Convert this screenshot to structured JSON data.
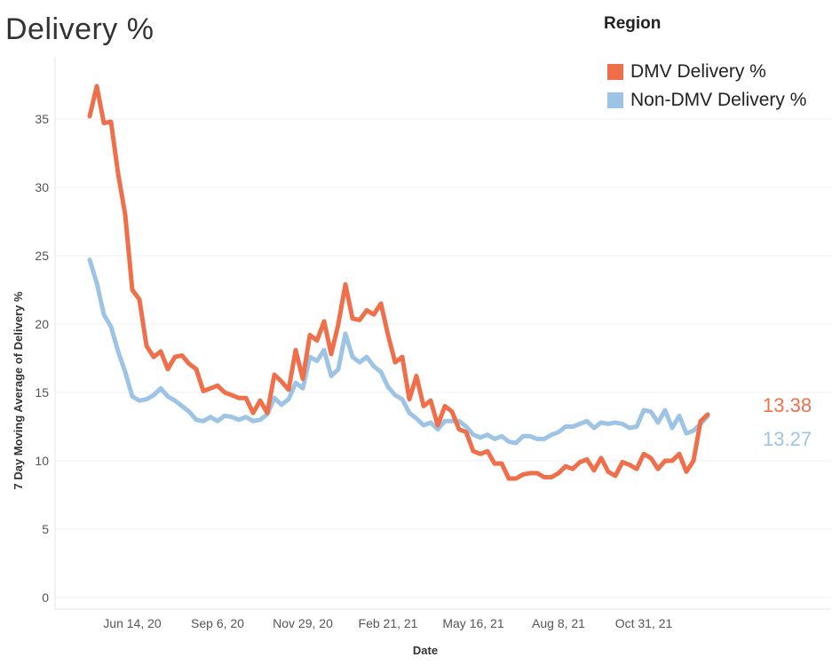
{
  "title": "Delivery %",
  "legend": {
    "title": "Region",
    "items": [
      {
        "label": "DMV Delivery %",
        "color": "#ef6f4a"
      },
      {
        "label": "Non-DMV Delivery %",
        "color": "#9dc4e4"
      }
    ]
  },
  "chart_data": {
    "type": "line",
    "title": "Delivery %",
    "xlabel": "Date",
    "ylabel": "7 Day Moving Average of Delivery %",
    "ylim": [
      0,
      38
    ],
    "yticks": [
      0,
      5,
      10,
      15,
      20,
      25,
      30,
      35
    ],
    "xticks": [
      {
        "label": "Jun 14, 20",
        "week": 6
      },
      {
        "label": "Sep 6, 20",
        "week": 18
      },
      {
        "label": "Nov 29, 20",
        "week": 30
      },
      {
        "label": "Feb 21, 21",
        "week": 42
      },
      {
        "label": "May 16, 21",
        "week": 54
      },
      {
        "label": "Aug 8, 21",
        "week": 66
      },
      {
        "label": "Oct 31, 21",
        "week": 78
      }
    ],
    "x_unit": "weeks since May 3, 20",
    "x_range": [
      -1.5,
      86
    ],
    "series": [
      {
        "name": "DMV Delivery %",
        "color": "#ef6f4a",
        "end_label": "13.38",
        "values": [
          35.2,
          37.4,
          34.7,
          34.8,
          31.0,
          28.0,
          22.5,
          21.8,
          18.4,
          17.6,
          18.0,
          16.7,
          17.6,
          17.7,
          17.1,
          16.7,
          15.1,
          15.3,
          15.5,
          15.0,
          14.8,
          14.6,
          14.6,
          13.5,
          14.4,
          13.5,
          16.3,
          15.8,
          15.2,
          18.1,
          16.0,
          19.2,
          18.8,
          20.2,
          17.8,
          20.0,
          22.9,
          20.4,
          20.3,
          21.0,
          20.7,
          21.5,
          19.2,
          17.2,
          17.6,
          14.5,
          16.2,
          14.0,
          14.4,
          12.6,
          14.0,
          13.6,
          12.3,
          12.1,
          10.7,
          10.5,
          10.7,
          9.8,
          9.8,
          8.7,
          8.7,
          9.0,
          9.1,
          9.1,
          8.8,
          8.8,
          9.1,
          9.6,
          9.4,
          9.9,
          10.1,
          9.3,
          10.2,
          9.2,
          8.9,
          9.9,
          9.7,
          9.4,
          10.5,
          10.2,
          9.4,
          10.0,
          10.0,
          10.5,
          9.2,
          10.0,
          12.9,
          13.38
        ]
      },
      {
        "name": "Non-DMV Delivery %",
        "color": "#9dc4e4",
        "end_label": "13.27",
        "values": [
          24.7,
          23.0,
          20.7,
          19.8,
          18.0,
          16.5,
          14.7,
          14.4,
          14.5,
          14.8,
          15.3,
          14.7,
          14.4,
          14.0,
          13.6,
          13.0,
          12.9,
          13.2,
          12.9,
          13.3,
          13.2,
          13.0,
          13.2,
          12.9,
          13.0,
          13.4,
          14.6,
          14.1,
          14.5,
          15.7,
          15.3,
          17.6,
          17.3,
          18.1,
          16.2,
          16.7,
          19.3,
          17.6,
          17.2,
          17.6,
          16.9,
          16.5,
          15.4,
          14.8,
          14.5,
          13.5,
          13.1,
          12.6,
          12.8,
          12.3,
          12.9,
          12.9,
          12.9,
          12.5,
          11.9,
          11.7,
          11.9,
          11.6,
          11.8,
          11.4,
          11.3,
          11.8,
          11.8,
          11.6,
          11.6,
          11.9,
          12.1,
          12.5,
          12.5,
          12.7,
          12.9,
          12.4,
          12.8,
          12.7,
          12.8,
          12.7,
          12.4,
          12.5,
          13.7,
          13.6,
          12.8,
          13.7,
          12.4,
          13.3,
          12.0,
          12.2,
          12.7,
          13.27
        ]
      }
    ]
  }
}
